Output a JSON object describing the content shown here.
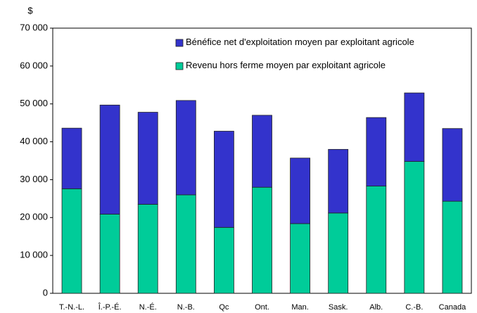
{
  "chart_data": {
    "type": "stacked_bar",
    "y_unit": "$",
    "categories": [
      "T.-N.-L.",
      "Î.-P.-É.",
      "N.-É.",
      "N.-B.",
      "Qc",
      "Ont.",
      "Man.",
      "Sask.",
      "Alb.",
      "C.-B.",
      "Canada"
    ],
    "series": [
      {
        "name": "Revenu hors ferme moyen par exploitant agricole",
        "color": "#00cc99",
        "values": [
          27600,
          20900,
          23500,
          26000,
          17400,
          28000,
          18400,
          21200,
          28300,
          34800,
          24300
        ]
      },
      {
        "name": "Bénéfice net d'exploitation moyen par exploitant agricole",
        "color": "#3333cc",
        "values": [
          16000,
          28800,
          24300,
          24900,
          25400,
          19000,
          17300,
          16800,
          18100,
          18100,
          19200
        ]
      }
    ],
    "ylim": [
      0,
      70000
    ],
    "yticks": [
      0,
      {
        "value": 10000,
        "label": "10 000"
      },
      {
        "value": 20000,
        "label": "20 000"
      },
      {
        "value": 30000,
        "label": "30 000"
      },
      {
        "value": 40000,
        "label": "40 000"
      },
      {
        "value": 50000,
        "label": "50 000"
      },
      {
        "value": 60000,
        "label": "60 000"
      },
      {
        "value": 70000,
        "label": "70 000"
      }
    ],
    "legend": "top-right"
  }
}
